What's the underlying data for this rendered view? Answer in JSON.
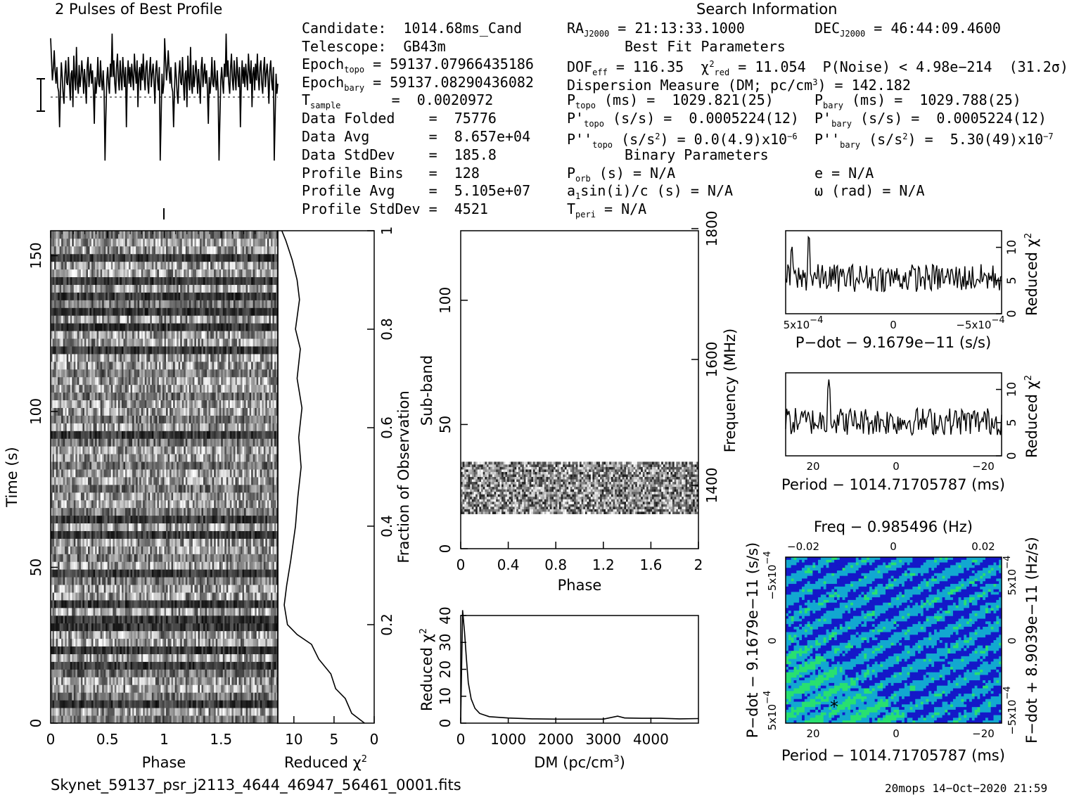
{
  "header": {
    "profile_title": "2 Pulses of Best Profile",
    "search_title": "Search Information",
    "candidate": "Candidate:  1014.68ms_Cand",
    "telescope": "Telescope:  GB43m",
    "epoch_topo_label": "Epoch",
    "epoch_topo_sub": "topo",
    "epoch_topo_value": " = 59137.07966435186",
    "epoch_bary_label": "Epoch",
    "epoch_bary_sub": "bary",
    "epoch_bary_value": " = 59137.08290436082",
    "t_label": "T",
    "t_sub": "sample",
    "t_value": "      =  0.0020972",
    "data_folded": "Data Folded    =  75776",
    "data_avg": "Data Avg       =  8.657e+04",
    "data_stddev": "Data StdDev    =  185.8",
    "profile_bins": "Profile Bins   =  128",
    "profile_avg": "Profile Avg    =  5.105e+07",
    "profile_stddev": "Profile StdDev =  4521"
  },
  "search": {
    "ra": "RA",
    "ra_sub": "J2000",
    "ra_value": " = 21:13:33.1000",
    "dec": "DEC",
    "dec_sub": "J2000",
    "dec_value": " = 46:44:09.4600",
    "best_fit": "Best Fit Parameters",
    "dof": "DOF",
    "dof_sub": "eff",
    "dof_value": " = 116.35  ",
    "chi": "χ",
    "chi_sup": "2",
    "chi_sub": "red",
    "chi_value": " = 11.054  P(Noise) < 4.98e−214  (31.2σ)",
    "dm_line": "Dispersion Measure (DM; pc/cm",
    "dm_sup": "3",
    "dm_value": ") = 142.182",
    "ptopo": "P",
    "ptopo_sub": "topo",
    "ptopo_value": " (ms) =  1029.821(25)",
    "pbary": "P",
    "pbary_sub": "bary",
    "pbary_value": " (ms) =  1029.788(25)",
    "pdtopo": "P'",
    "pdtopo_sub": "topo",
    "pdtopo_value": " (s/s) =  0.0005224(12)",
    "pdbary": "P'",
    "pdbary_sub": "bary",
    "pdbary_value": " (s/s) =  0.0005224(12)",
    "pddtopo": "P''",
    "pddtopo_sub": "topo",
    "pddtopo_value": " (s/s",
    "pddtopo_sup": "2",
    "pddtopo_value2": ") = 0.0(4.9)x10",
    "pddtopo_exp": "−6",
    "pddbary": "P''",
    "pddbary_sub": "bary",
    "pddbary_value": " (s/s",
    "pddbary_sup": "2",
    "pddbary_value2": ") =  5.30(49)x10",
    "pddbary_exp": "−7",
    "binary": "Binary Parameters",
    "porb": "P",
    "porb_sub": "orb",
    "porb_value": " (s) = N/A",
    "e": "e = N/A",
    "a1": "a",
    "a1_sub": "1",
    "a1_value": "sin(i)/c (s) = N/A",
    "omega": "ω (rad) = N/A",
    "tperi": "T",
    "tperi_sub": "peri",
    "tperi_value": " = N/A"
  },
  "footer": {
    "filename": "Skynet_59137_psr_j2113_4644_46947_56461_0001.fits",
    "stamp": "20mops 14−Oct−2020 21:59"
  },
  "colors": {
    "ink": "#000000",
    "ppdot_low": "#1418c8",
    "ppdot_mid": "#12a8d0",
    "ppdot_high": "#28e070"
  },
  "chart_data": [
    {
      "id": "profile",
      "type": "line",
      "title": "2 Pulses of Best Profile",
      "x_range": [
        0,
        2
      ],
      "values": [
        0.88,
        0.55,
        0.25,
        0.42,
        0.7,
        0.4,
        0.2,
        0.45,
        0.15,
        0.08,
        -0.45,
        0.1,
        0.52,
        0.3,
        0.05,
        -0.1,
        0.35,
        0.55,
        0.22,
        0.18,
        0.6,
        0.25,
        -0.05,
        0.35,
        0.4,
        -0.15,
        0.62,
        0.3,
        0.1,
        0.75,
        0.2,
        0.05,
        0.48,
        0.15,
        0.3,
        0.55,
        0.35,
        0.05,
        0.42,
        0.2,
        -0.1,
        0.45,
        0.6,
        0.15,
        0.35,
        0.5,
        0.2,
        0.4,
        0.1,
        -0.4,
        0.3,
        0.05,
        0.25,
        0.6,
        0.2,
        0.15,
        0.55,
        0.25,
        0.1,
        0.4,
        0.1,
        -0.95,
        -0.3,
        0.25,
        0.45,
        0.2,
        0.05,
        0.5,
        0.3,
        0.95,
        0.3,
        0.55,
        0.2,
        0.05,
        0.45,
        0.65,
        0.25,
        0.1,
        0.55,
        0.3,
        0.1,
        0.6,
        0.35,
        0.15,
        0.45,
        -0.45,
        0.25,
        0.55,
        0.2,
        0.45,
        0.15,
        0.5,
        0.3,
        0.1,
        0.65,
        0.4,
        0.2,
        0.55,
        -0.15,
        0.35,
        0.45,
        0.1,
        0.5,
        0.25,
        0.65,
        0.3,
        0.1,
        0.45,
        0.55,
        0.2,
        0.05,
        0.4,
        0.6,
        0.15,
        0.35,
        0.5,
        0.25,
        -0.1,
        0.4,
        0.55,
        0.25,
        0.1,
        0.45,
        -0.95,
        -0.3,
        0.35,
        0.05,
        0.2
      ],
      "error_bar": "±"
    },
    {
      "id": "time-phase",
      "type": "heatmap",
      "xlabel": "Phase",
      "ylabel": "Time (s)",
      "x_range": [
        0,
        2
      ],
      "y_range": [
        0,
        158
      ],
      "x_ticks": [
        "0",
        "0.5",
        "1",
        "1.5"
      ],
      "y_ticks": [
        "0",
        "50",
        "100",
        "150"
      ],
      "rows": 64,
      "cols": 128,
      "dark_rows": [
        2,
        7,
        9,
        12,
        13,
        15,
        19,
        24,
        26,
        37,
        48,
        51,
        53,
        55,
        57,
        60
      ]
    },
    {
      "id": "chi-vs-time",
      "type": "line",
      "xlabel": "Reduced χ",
      "xlabel_sup": "2",
      "right_label": "Fraction of Observation",
      "x_ticks": [
        "10",
        "5",
        "0"
      ],
      "right_ticks": [
        "0.2",
        "0.4",
        "0.6",
        "0.8",
        "1"
      ],
      "x_range": [
        12,
        0
      ],
      "points": [
        [
          1.2,
          0
        ],
        [
          2.8,
          0.02
        ],
        [
          3.6,
          0.05
        ],
        [
          4.8,
          0.07
        ],
        [
          5.4,
          0.1
        ],
        [
          6.9,
          0.13
        ],
        [
          7.8,
          0.16
        ],
        [
          9.6,
          0.18
        ],
        [
          10.8,
          0.2
        ],
        [
          11.2,
          0.24
        ],
        [
          10.9,
          0.28
        ],
        [
          10.4,
          0.33
        ],
        [
          9.8,
          0.4
        ],
        [
          9.5,
          0.46
        ],
        [
          9.1,
          0.52
        ],
        [
          9.4,
          0.58
        ],
        [
          9.0,
          0.64
        ],
        [
          9.6,
          0.7
        ],
        [
          9.2,
          0.76
        ],
        [
          9.8,
          0.8
        ],
        [
          9.3,
          0.86
        ],
        [
          9.6,
          0.9
        ],
        [
          10.2,
          0.94
        ],
        [
          11.0,
          0.98
        ],
        [
          11.5,
          1.0
        ]
      ]
    },
    {
      "id": "subband-phase",
      "type": "heatmap",
      "xlabel": "Phase",
      "ylabel": "Sub-band",
      "right_label": "Frequency (MHz)",
      "x_range": [
        0,
        2
      ],
      "y_range": [
        0,
        128
      ],
      "x_ticks": [
        "0",
        "0.4",
        "0.8",
        "1.2",
        "1.6",
        "2"
      ],
      "y_ticks": [
        "0",
        "50",
        "100"
      ],
      "right_ticks": [
        "1400",
        "1600",
        "1800"
      ],
      "filled_subbands": [
        14,
        35
      ]
    },
    {
      "id": "chi-vs-dm",
      "type": "line",
      "xlabel": "DM (pc/cm",
      "xlabel_sup": "3",
      "xlabel_end": ")",
      "ylabel": "Reduced χ",
      "ylabel_sup": "2",
      "x_range": [
        0,
        5000
      ],
      "y_range": [
        0,
        40
      ],
      "x_ticks": [
        "0",
        "1000",
        "2000",
        "3000",
        "4000"
      ],
      "y_ticks": [
        "0",
        "10",
        "20",
        "30",
        "40"
      ],
      "points": [
        [
          0,
          1
        ],
        [
          40,
          42
        ],
        [
          80,
          34
        ],
        [
          120,
          24
        ],
        [
          160,
          15
        ],
        [
          220,
          9
        ],
        [
          300,
          5.5
        ],
        [
          400,
          3.6
        ],
        [
          600,
          2.4
        ],
        [
          1000,
          1.9
        ],
        [
          1500,
          1.6
        ],
        [
          2000,
          1.5
        ],
        [
          2500,
          1.5
        ],
        [
          3000,
          1.5
        ],
        [
          3300,
          2.6
        ],
        [
          3450,
          1.9
        ],
        [
          3800,
          1.8
        ],
        [
          4200,
          1.8
        ],
        [
          4600,
          1.6
        ],
        [
          5000,
          1.7
        ]
      ]
    },
    {
      "id": "chi-vs-pdot",
      "type": "line",
      "xlabel": "P−dot − 9.1679e−11 (s/s)",
      "right_label": "Reduced χ",
      "right_label_sup": "2",
      "x_tick_labels": [
        "5x10",
        "0",
        "−5x10"
      ],
      "x_tick_exp": "−4",
      "y_ticks": [
        "0",
        "5",
        "10"
      ],
      "x_range": [
        0.0007,
        -0.0007
      ],
      "y_range": [
        0,
        12.5
      ],
      "peaks": [
        [
          0.00066,
          10.5
        ],
        [
          0.00055,
          12.2
        ]
      ],
      "baseline": 5.4
    },
    {
      "id": "chi-vs-period",
      "type": "line",
      "xlabel": "Period − 1014.71705787 (ms)",
      "right_label": "Reduced χ",
      "right_label_sup": "2",
      "x_ticks": [
        "20",
        "0",
        "−20"
      ],
      "y_ticks": [
        "0",
        "5",
        "10"
      ],
      "x_range": [
        25,
        -25
      ],
      "y_range": [
        0,
        12.5
      ],
      "peaks": [
        [
          15,
          11.5
        ]
      ],
      "baseline": 5.2
    },
    {
      "id": "p-pdot",
      "type": "heatmap",
      "title": "Freq − 0.985496 (Hz)",
      "xlabel": "Period − 1014.71705787 (ms)",
      "ylabel": "P−dot − 9.1679e−11 (s/s)",
      "right_label": "F−dot + 8.9039e−11 (Hz/s)",
      "top_ticks": [
        "−0.02",
        "0",
        "0.02"
      ],
      "x_ticks": [
        "20",
        "0",
        "−20"
      ],
      "y_ticks": [
        "5x10",
        "0",
        "−5x10"
      ],
      "y_tick_exp": "−4",
      "right_ticks": [
        "−5x10",
        "0",
        "5x10"
      ],
      "right_tick_exp": "−4",
      "marker": "*"
    }
  ]
}
